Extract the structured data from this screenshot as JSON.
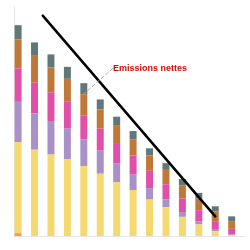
{
  "chart_data": {
    "type": "bar",
    "stacked": true,
    "categories": [
      null,
      null,
      null,
      null,
      null,
      null,
      null,
      null,
      null,
      null,
      null,
      null,
      null,
      null
    ],
    "series": [
      {
        "color": "#E8A060",
        "values": [
          0.3,
          0.0,
          0.0,
          0.0,
          0.0,
          0.0,
          0.0,
          0.0,
          0.0,
          0.0,
          0.0,
          0.0,
          0.0,
          0.0
        ]
      },
      {
        "color": "#F5D870",
        "values": [
          9.5,
          9.0,
          8.5,
          8.0,
          7.3,
          6.5,
          5.6,
          4.8,
          3.8,
          3.0,
          2.0,
          1.2,
          0.5,
          0.1
        ]
      },
      {
        "color": "#A890C8",
        "values": [
          4.2,
          3.8,
          3.5,
          3.2,
          2.8,
          2.4,
          2.0,
          1.6,
          1.2,
          0.8,
          0.5,
          0.3,
          0.15,
          0.05
        ]
      },
      {
        "color": "#E050A8",
        "values": [
          3.5,
          3.2,
          3.0,
          2.8,
          2.5,
          2.3,
          2.1,
          2.0,
          1.8,
          1.6,
          1.4,
          1.2,
          0.9,
          0.6
        ]
      },
      {
        "color": "#C07838",
        "values": [
          3.0,
          2.8,
          2.6,
          2.4,
          2.2,
          2.0,
          1.8,
          1.7,
          1.6,
          1.5,
          1.4,
          1.2,
          1.0,
          0.8
        ]
      },
      {
        "color": "#607878",
        "values": [
          1.5,
          1.4,
          1.35,
          1.25,
          1.15,
          1.05,
          0.95,
          0.85,
          0.75,
          0.7,
          0.65,
          0.6,
          0.55,
          0.5
        ]
      }
    ],
    "ylim": [
      0,
      24
    ],
    "tick_labels": false,
    "grid": false,
    "lines": [
      {
        "type": "line",
        "color": "#000000",
        "x": [
          -0.5,
          13.5
        ],
        "y": [
          23.0,
          2.05
        ]
      }
    ],
    "annotations": [
      {
        "text": "Emissions nettes",
        "x": 5.2,
        "y": 17.5,
        "xy": [
          2.8,
          14.8
        ],
        "color": "#CC1100"
      }
    ]
  }
}
